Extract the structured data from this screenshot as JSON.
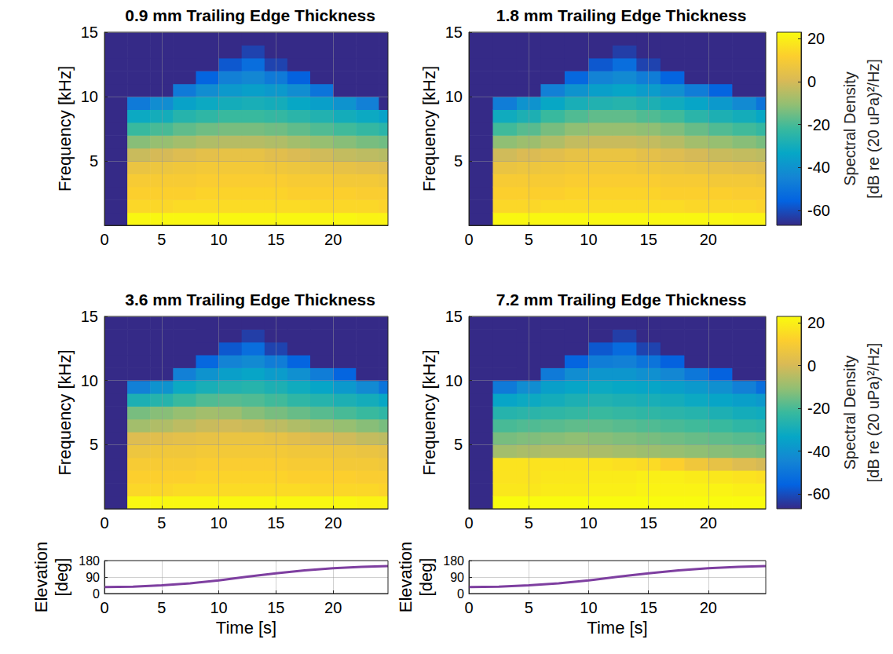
{
  "chart_data": [
    {
      "type": "heatmap",
      "title": "0.9 mm Trailing Edge Thickness",
      "ylabel": "Frequency [kHz]",
      "xlim": [
        0,
        24.8
      ],
      "xticks": [
        0,
        5,
        10,
        15,
        20
      ],
      "ylim": [
        0,
        15
      ],
      "yticks": [
        5,
        10,
        15
      ],
      "grid": true,
      "time_bins": [
        0,
        2,
        4,
        6,
        8,
        10,
        12,
        14,
        16,
        18,
        20,
        22,
        24,
        24.8
      ],
      "frequency_bins": [
        0,
        1,
        2,
        3,
        4,
        5,
        6,
        7,
        8,
        9,
        10,
        11,
        12,
        13,
        14,
        15
      ],
      "color_range": [
        -67,
        23
      ],
      "spectral_density": [
        [
          -70,
          -70,
          -70,
          -70,
          -70,
          -70,
          -70,
          -70,
          -70,
          -70,
          -70,
          -70,
          -70,
          -70,
          -70
        ],
        [
          22,
          14,
          12,
          10,
          6,
          -2,
          -12,
          -22,
          -32,
          -48,
          -70,
          -70,
          -70,
          -70,
          -70
        ],
        [
          22,
          14,
          12,
          10,
          7,
          0,
          -10,
          -20,
          -30,
          -42,
          -70,
          -70,
          -70,
          -70,
          -70
        ],
        [
          22,
          15,
          12,
          10,
          8,
          2,
          -8,
          -17,
          -26,
          -35,
          -48,
          -70,
          -70,
          -70,
          -70
        ],
        [
          22,
          15,
          13,
          11,
          9,
          4,
          -6,
          -15,
          -24,
          -32,
          -42,
          -55,
          -70,
          -70,
          -70
        ],
        [
          22,
          15,
          13,
          11,
          9,
          5,
          -5,
          -14,
          -22,
          -30,
          -38,
          -46,
          -58,
          -70,
          -70
        ],
        [
          22,
          15,
          13,
          11,
          9,
          5,
          -5,
          -14,
          -22,
          -29,
          -36,
          -44,
          -52,
          -62,
          -70
        ],
        [
          22,
          15,
          13,
          11,
          8,
          3,
          -6,
          -15,
          -23,
          -30,
          -38,
          -48,
          -62,
          -70,
          -70
        ],
        [
          22,
          15,
          12,
          10,
          7,
          1,
          -8,
          -17,
          -25,
          -33,
          -42,
          -56,
          -70,
          -70,
          -70
        ],
        [
          22,
          14,
          12,
          10,
          6,
          -1,
          -10,
          -19,
          -27,
          -36,
          -50,
          -70,
          -70,
          -70,
          -70
        ],
        [
          22,
          14,
          12,
          9,
          5,
          -3,
          -12,
          -21,
          -30,
          -40,
          -70,
          -70,
          -70,
          -70,
          -70
        ],
        [
          21,
          14,
          11,
          9,
          4,
          -4,
          -14,
          -23,
          -32,
          -46,
          -70,
          -70,
          -70,
          -70,
          -70
        ],
        [
          21,
          13,
          11,
          8,
          3,
          -5,
          -15,
          -25,
          -35,
          -70,
          -70,
          -70,
          -70,
          -70,
          -70
        ]
      ]
    },
    {
      "type": "heatmap",
      "title": "1.8 mm Trailing Edge Thickness",
      "ylabel": "Frequency [kHz]",
      "xlim": [
        0,
        24.8
      ],
      "xticks": [
        0,
        5,
        10,
        15,
        20
      ],
      "ylim": [
        0,
        15
      ],
      "yticks": [
        5,
        10,
        15
      ],
      "grid": true,
      "time_bins": [
        0,
        2,
        4,
        6,
        8,
        10,
        12,
        14,
        16,
        18,
        20,
        22,
        24,
        24.8
      ],
      "frequency_bins": [
        0,
        1,
        2,
        3,
        4,
        5,
        6,
        7,
        8,
        9,
        10,
        11,
        12,
        13,
        14,
        15
      ],
      "color_range": [
        -67,
        23
      ],
      "colorbar": {
        "label": "Spectral Density [dB re (20 uPa)²/Hz]",
        "ticks": [
          -60,
          -40,
          -20,
          0,
          20
        ]
      },
      "spectral_density": [
        [
          -70,
          -70,
          -70,
          -70,
          -70,
          -70,
          -70,
          -70,
          -70,
          -70,
          -70,
          -70,
          -70,
          -70,
          -70
        ],
        [
          22,
          14,
          12,
          10,
          6,
          -1,
          -11,
          -21,
          -31,
          -47,
          -70,
          -70,
          -70,
          -70,
          -70
        ],
        [
          22,
          14,
          12,
          10,
          7,
          1,
          -9,
          -18,
          -28,
          -40,
          -70,
          -70,
          -70,
          -70,
          -70
        ],
        [
          22,
          15,
          12,
          10,
          8,
          3,
          -6,
          -14,
          -22,
          -33,
          -46,
          -70,
          -70,
          -70,
          -70
        ],
        [
          22,
          15,
          13,
          11,
          9,
          5,
          -3,
          -11,
          -19,
          -29,
          -40,
          -54,
          -70,
          -70,
          -70
        ],
        [
          22,
          15,
          13,
          11,
          9,
          6,
          -2,
          -10,
          -17,
          -27,
          -36,
          -45,
          -58,
          -70,
          -70
        ],
        [
          22,
          15,
          13,
          11,
          9,
          6,
          -2,
          -10,
          -17,
          -26,
          -34,
          -43,
          -52,
          -63,
          -70
        ],
        [
          22,
          15,
          13,
          11,
          8,
          4,
          -3,
          -11,
          -19,
          -28,
          -37,
          -47,
          -62,
          -70,
          -70
        ],
        [
          22,
          15,
          12,
          10,
          7,
          2,
          -5,
          -13,
          -21,
          -31,
          -41,
          -55,
          -70,
          -70,
          -70
        ],
        [
          22,
          14,
          12,
          10,
          6,
          0,
          -8,
          -16,
          -25,
          -34,
          -47,
          -70,
          -70,
          -70,
          -70
        ],
        [
          22,
          14,
          12,
          9,
          5,
          -2,
          -10,
          -19,
          -28,
          -38,
          -55,
          -70,
          -70,
          -70,
          -70
        ],
        [
          21,
          14,
          11,
          9,
          4,
          -3,
          -12,
          -21,
          -30,
          -43,
          -70,
          -70,
          -70,
          -70,
          -70
        ],
        [
          21,
          13,
          11,
          8,
          3,
          -4,
          -14,
          -23,
          -33,
          -50,
          -70,
          -70,
          -70,
          -70,
          -70
        ]
      ]
    },
    {
      "type": "heatmap",
      "title": "3.6 mm Trailing Edge Thickness",
      "ylabel": "Frequency [kHz]",
      "xlim": [
        0,
        24.8
      ],
      "xticks": [
        0,
        5,
        10,
        15,
        20
      ],
      "ylim": [
        0,
        15
      ],
      "yticks": [
        5,
        10,
        15
      ],
      "grid": true,
      "time_bins": [
        0,
        2,
        4,
        6,
        8,
        10,
        12,
        14,
        16,
        18,
        20,
        22,
        24,
        24.8
      ],
      "frequency_bins": [
        0,
        1,
        2,
        3,
        4,
        5,
        6,
        7,
        8,
        9,
        10,
        11,
        12,
        13,
        14,
        15
      ],
      "color_range": [
        -67,
        23
      ],
      "spectral_density": [
        [
          -70,
          -70,
          -70,
          -70,
          -70,
          -70,
          -70,
          -70,
          -70,
          -70,
          -70,
          -70,
          -70,
          -70,
          -70
        ],
        [
          22,
          14,
          12,
          10,
          7,
          2,
          -8,
          -14,
          -28,
          -46,
          -70,
          -70,
          -70,
          -70,
          -70
        ],
        [
          22,
          14,
          12,
          10,
          8,
          3,
          -6,
          -12,
          -26,
          -40,
          -70,
          -70,
          -70,
          -70,
          -70
        ],
        [
          22,
          15,
          12,
          10,
          8,
          4,
          -4,
          -10,
          -22,
          -32,
          -46,
          -70,
          -70,
          -70,
          -70
        ],
        [
          22,
          15,
          13,
          11,
          9,
          5,
          -2,
          -8,
          -19,
          -29,
          -40,
          -54,
          -70,
          -70,
          -70
        ],
        [
          22,
          15,
          13,
          11,
          9,
          6,
          -1,
          -9,
          -18,
          -27,
          -36,
          -45,
          -58,
          -70,
          -70
        ],
        [
          22,
          15,
          13,
          11,
          9,
          6,
          -2,
          -12,
          -19,
          -26,
          -34,
          -43,
          -52,
          -63,
          -70
        ],
        [
          22,
          15,
          13,
          11,
          9,
          5,
          -4,
          -14,
          -21,
          -28,
          -37,
          -47,
          -62,
          -70,
          -70
        ],
        [
          22,
          15,
          12,
          10,
          8,
          3,
          -6,
          -16,
          -24,
          -31,
          -41,
          -55,
          -70,
          -70,
          -70
        ],
        [
          22,
          14,
          12,
          10,
          8,
          1,
          -8,
          -18,
          -26,
          -34,
          -47,
          -70,
          -70,
          -70,
          -70
        ],
        [
          22,
          14,
          12,
          9,
          7,
          -1,
          -10,
          -20,
          -28,
          -38,
          -55,
          -70,
          -70,
          -70,
          -70
        ],
        [
          21,
          14,
          11,
          9,
          6,
          -3,
          -12,
          -22,
          -30,
          -43,
          -70,
          -70,
          -70,
          -70,
          -70
        ],
        [
          21,
          13,
          11,
          8,
          5,
          -4,
          -14,
          -24,
          -33,
          -50,
          -70,
          -70,
          -70,
          -70,
          -70
        ]
      ]
    },
    {
      "type": "heatmap",
      "title": "7.2 mm Trailing Edge Thickness",
      "ylabel": "Frequency [kHz]",
      "xlim": [
        0,
        24.8
      ],
      "xticks": [
        0,
        5,
        10,
        15,
        20
      ],
      "ylim": [
        0,
        15
      ],
      "yticks": [
        5,
        10,
        15
      ],
      "grid": true,
      "time_bins": [
        0,
        2,
        4,
        6,
        8,
        10,
        12,
        14,
        16,
        18,
        20,
        22,
        24,
        24.8
      ],
      "frequency_bins": [
        0,
        1,
        2,
        3,
        4,
        5,
        6,
        7,
        8,
        9,
        10,
        11,
        12,
        13,
        14,
        15
      ],
      "color_range": [
        -67,
        23
      ],
      "colorbar": {
        "label": "Spectral Density [dB re (20 uPa)²/Hz]",
        "ticks": [
          -60,
          -40,
          -20,
          0,
          20
        ]
      },
      "spectral_density": [
        [
          -70,
          -70,
          -70,
          -70,
          -70,
          -70,
          -70,
          -70,
          -70,
          -70,
          -70,
          -70,
          -70,
          -70,
          -70
        ],
        [
          24,
          18,
          17,
          17,
          -8,
          -14,
          -20,
          -26,
          -34,
          -48,
          -70,
          -70,
          -70,
          -70,
          -70
        ],
        [
          24,
          18,
          17,
          17,
          -7,
          -13,
          -19,
          -25,
          -32,
          -42,
          -70,
          -70,
          -70,
          -70,
          -70
        ],
        [
          24,
          19,
          18,
          17,
          -6,
          -12,
          -18,
          -24,
          -30,
          -36,
          -48,
          -70,
          -70,
          -70,
          -70
        ],
        [
          24,
          19,
          18,
          17,
          -6,
          -11,
          -17,
          -23,
          -28,
          -34,
          -42,
          -55,
          -70,
          -70,
          -70
        ],
        [
          24,
          20,
          19,
          17,
          -7,
          -12,
          -17,
          -22,
          -27,
          -32,
          -39,
          -47,
          -58,
          -70,
          -70
        ],
        [
          24,
          20,
          19,
          16,
          -8,
          -13,
          -18,
          -23,
          -28,
          -33,
          -39,
          -46,
          -53,
          -63,
          -70
        ],
        [
          24,
          21,
          20,
          15,
          -9,
          -14,
          -19,
          -24,
          -29,
          -34,
          -41,
          -50,
          -62,
          -70,
          -70
        ],
        [
          24,
          21,
          20,
          12,
          -10,
          -15,
          -20,
          -25,
          -30,
          -36,
          -44,
          -56,
          -70,
          -70,
          -70
        ],
        [
          24,
          21,
          19,
          8,
          -11,
          -16,
          -21,
          -26,
          -32,
          -38,
          -49,
          -70,
          -70,
          -70,
          -70
        ],
        [
          24,
          21,
          18,
          5,
          -12,
          -17,
          -22,
          -28,
          -34,
          -41,
          -56,
          -70,
          -70,
          -70,
          -70
        ],
        [
          23,
          20,
          17,
          2,
          -13,
          -18,
          -24,
          -30,
          -36,
          -46,
          -70,
          -70,
          -70,
          -70,
          -70
        ],
        [
          23,
          20,
          16,
          0,
          -14,
          -19,
          -25,
          -31,
          -38,
          -52,
          -70,
          -70,
          -70,
          -70,
          -70
        ]
      ]
    },
    {
      "type": "line",
      "ylabel": "Elevation [deg]",
      "xlabel": "Time [s]",
      "x": [
        0,
        2.5,
        5,
        7.5,
        10,
        12.5,
        15,
        17.5,
        20,
        22.5,
        24.8
      ],
      "values": [
        35,
        38,
        45,
        56,
        72,
        92,
        110,
        126,
        138,
        146,
        150
      ],
      "color": "#7e3fa0",
      "xlim": [
        0,
        24.8
      ],
      "xticks": [
        0,
        5,
        10,
        15,
        20
      ],
      "ylim": [
        0,
        180
      ],
      "yticks": [
        0,
        90,
        180
      ],
      "grid": true
    },
    {
      "type": "line",
      "ylabel": "Elevation [deg]",
      "xlabel": "Time [s]",
      "x": [
        0,
        2.5,
        5,
        7.5,
        10,
        12.5,
        15,
        17.5,
        20,
        22.5,
        24.8
      ],
      "values": [
        35,
        38,
        45,
        56,
        72,
        92,
        110,
        126,
        138,
        146,
        150
      ],
      "color": "#7e3fa0",
      "xlim": [
        0,
        24.8
      ],
      "xticks": [
        0,
        5,
        10,
        15,
        20
      ],
      "ylim": [
        0,
        180
      ],
      "yticks": [
        0,
        90,
        180
      ],
      "grid": true
    }
  ]
}
